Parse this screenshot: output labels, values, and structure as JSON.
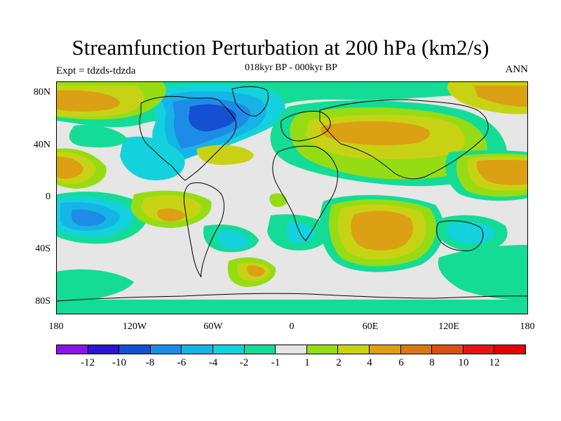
{
  "title": "Streamfunction Perturbation at 200 hPa (km2/s)",
  "subtitle": "018kyr BP - 000kyr BP",
  "left_label": "Expt = tdzds-tdzda",
  "right_label": "ANN",
  "lat_ticks": [
    "80N",
    "40N",
    "0",
    "40S",
    "80S"
  ],
  "lon_ticks": [
    "180",
    "120W",
    "60W",
    "0",
    "60E",
    "120E",
    "180"
  ],
  "colorbar": {
    "labels": [
      "-12",
      "-10",
      "-8",
      "-6",
      "-4",
      "-2",
      "-1",
      "1",
      "2",
      "4",
      "6",
      "8",
      "10",
      "12"
    ],
    "colors": [
      "#8a14e6",
      "#2b14d2",
      "#1450d2",
      "#1e8ce6",
      "#16b4e6",
      "#14d2dc",
      "#14dc96",
      "#e6e6e6",
      "#96dc14",
      "#c8d214",
      "#dca014",
      "#dc7814",
      "#dc5014",
      "#e61414",
      "#e60000"
    ]
  },
  "fill_colors": {
    "n1": "#14dc96",
    "n2": "#14d2dc",
    "n4": "#16b4e6",
    "n6": "#1e8ce6",
    "n8": "#1450d2",
    "p1": "#96dc14",
    "p2": "#c8d214",
    "p4": "#dca014",
    "p6": "#dc7814",
    "background": "#e6e6e6"
  },
  "chart_data": {
    "type": "map",
    "variable": "Streamfunction perturbation at 200 hPa",
    "units": "km2/s",
    "period": "018kyr BP - 000kyr BP",
    "season": "ANN",
    "lon_range": [
      -180,
      180
    ],
    "lat_range": [
      -90,
      90
    ],
    "levels": [
      -12,
      -10,
      -8,
      -6,
      -4,
      -2,
      -1,
      1,
      2,
      4,
      6,
      8,
      10,
      12
    ]
  }
}
